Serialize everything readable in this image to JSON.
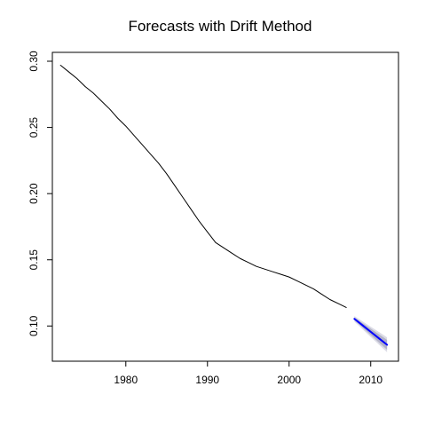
{
  "chart_data": {
    "type": "line",
    "title": "Forecasts with Drift Method",
    "xlabel": "",
    "ylabel": "",
    "xlim": [
      1971.0,
      2013.4
    ],
    "ylim": [
      0.0734,
      0.3067
    ],
    "x_ticks": [
      1980,
      1990,
      2000,
      2010
    ],
    "y_ticks": [
      0.1,
      0.15,
      0.2,
      0.25,
      0.3
    ],
    "x_tick_labels": [
      "1980",
      "1990",
      "2000",
      "2010"
    ],
    "y_tick_labels": [
      "0.10",
      "0.15",
      "0.20",
      "0.25",
      "0.30"
    ],
    "grid": false,
    "legend": "none",
    "series": [
      {
        "role": "observed",
        "color": "#000000",
        "x": [
          1972,
          1973,
          1974,
          1975,
          1976,
          1977,
          1978,
          1979,
          1980,
          1981,
          1982,
          1983,
          1984,
          1985,
          1986,
          1987,
          1988,
          1989,
          1990,
          1991,
          1992,
          1993,
          1994,
          1995,
          1996,
          1997,
          1998,
          1999,
          2000,
          2001,
          2002,
          2003,
          2004,
          2005,
          2006,
          2007
        ],
        "values": [
          0.297,
          0.292,
          0.287,
          0.281,
          0.276,
          0.27,
          0.264,
          0.257,
          0.251,
          0.244,
          0.237,
          0.23,
          0.223,
          0.215,
          0.206,
          0.197,
          0.188,
          0.179,
          0.171,
          0.163,
          0.159,
          0.155,
          0.151,
          0.148,
          0.145,
          0.143,
          0.141,
          0.139,
          0.137,
          0.134,
          0.131,
          0.128,
          0.124,
          0.12,
          0.117,
          0.114
        ]
      },
      {
        "role": "forecast",
        "color": "#0000ff",
        "x": [
          2008,
          2009,
          2010,
          2011,
          2012
        ],
        "values": [
          0.1054,
          0.1005,
          0.0956,
          0.0907,
          0.0858
        ],
        "lo80": [
          0.1044,
          0.0988,
          0.0932,
          0.0876,
          0.0821
        ],
        "hi80": [
          0.1064,
          0.1022,
          0.098,
          0.0938,
          0.0895
        ],
        "lo95": [
          0.1033,
          0.0975,
          0.0917,
          0.086,
          0.0802
        ],
        "hi95": [
          0.1075,
          0.1035,
          0.0995,
          0.0955,
          0.0914
        ],
        "band80_color": "#b3b3c8",
        "band95_color": "#dcdce6"
      }
    ]
  }
}
